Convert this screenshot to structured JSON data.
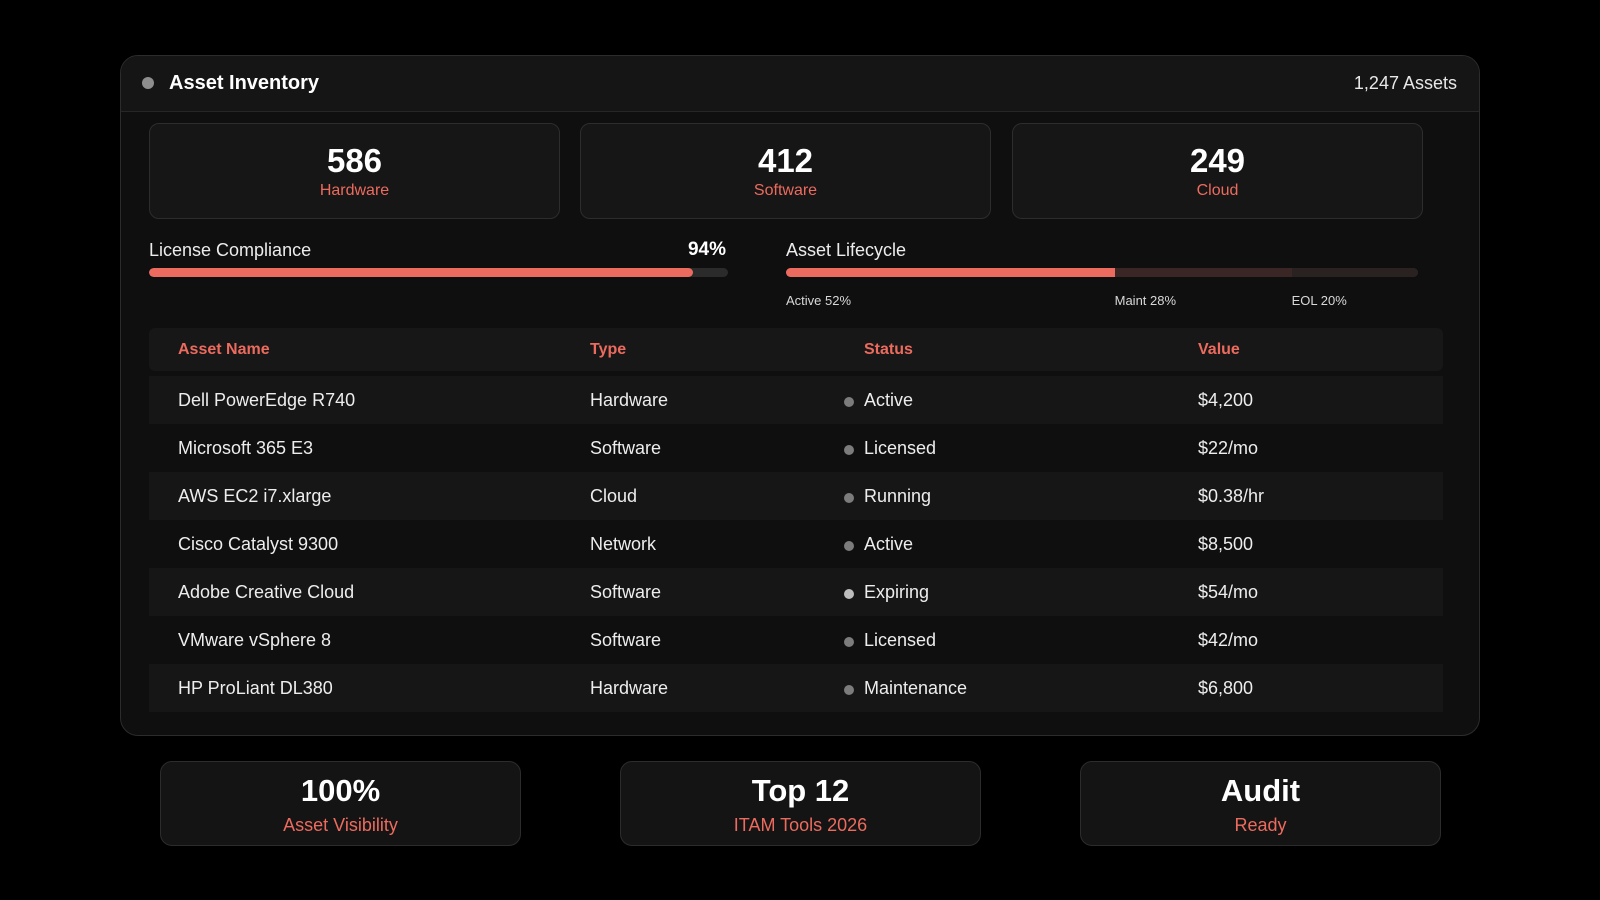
{
  "header": {
    "title": "Asset Inventory",
    "count": "1,247 Assets"
  },
  "stats": [
    {
      "value": "586",
      "label": "Hardware"
    },
    {
      "value": "412",
      "label": "Software"
    },
    {
      "value": "249",
      "label": "Cloud"
    }
  ],
  "compliance": {
    "label": "License Compliance",
    "value_text": "94%",
    "percent": 94
  },
  "lifecycle": {
    "label": "Asset Lifecycle",
    "segments": [
      {
        "label": "Active 52%",
        "percent": 52,
        "color": "#ec6b5e"
      },
      {
        "label": "Maint 28%",
        "percent": 28,
        "color": "#3a2624"
      },
      {
        "label": "EOL 20%",
        "percent": 20,
        "color": "#2a2221"
      }
    ]
  },
  "table": {
    "columns": [
      "Asset Name",
      "Type",
      "Status",
      "Value"
    ],
    "rows": [
      {
        "name": "Dell PowerEdge R740",
        "type": "Hardware",
        "status": "Active",
        "value": "$4,200",
        "dot": "gray"
      },
      {
        "name": "Microsoft 365 E3",
        "type": "Software",
        "status": "Licensed",
        "value": "$22/mo",
        "dot": "gray"
      },
      {
        "name": "AWS EC2 i7.xlarge",
        "type": "Cloud",
        "status": "Running",
        "value": "$0.38/hr",
        "dot": "gray"
      },
      {
        "name": "Cisco Catalyst 9300",
        "type": "Network",
        "status": "Active",
        "value": "$8,500",
        "dot": "gray"
      },
      {
        "name": "Adobe Creative Cloud",
        "type": "Software",
        "status": "Expiring",
        "value": "$54/mo",
        "dot": "light"
      },
      {
        "name": "VMware vSphere 8",
        "type": "Software",
        "status": "Licensed",
        "value": "$42/mo",
        "dot": "gray"
      },
      {
        "name": "HP ProLiant DL380",
        "type": "Hardware",
        "status": "Maintenance",
        "value": "$6,800",
        "dot": "gray"
      }
    ]
  },
  "highlights": [
    {
      "value": "100%",
      "label": "Asset Visibility"
    },
    {
      "value": "Top 12",
      "label": "ITAM Tools 2026"
    },
    {
      "value": "Audit",
      "label": "Ready"
    }
  ],
  "colors": {
    "accent": "#ec6b5e",
    "background": "#000000",
    "panel": "#0f0f0f"
  }
}
